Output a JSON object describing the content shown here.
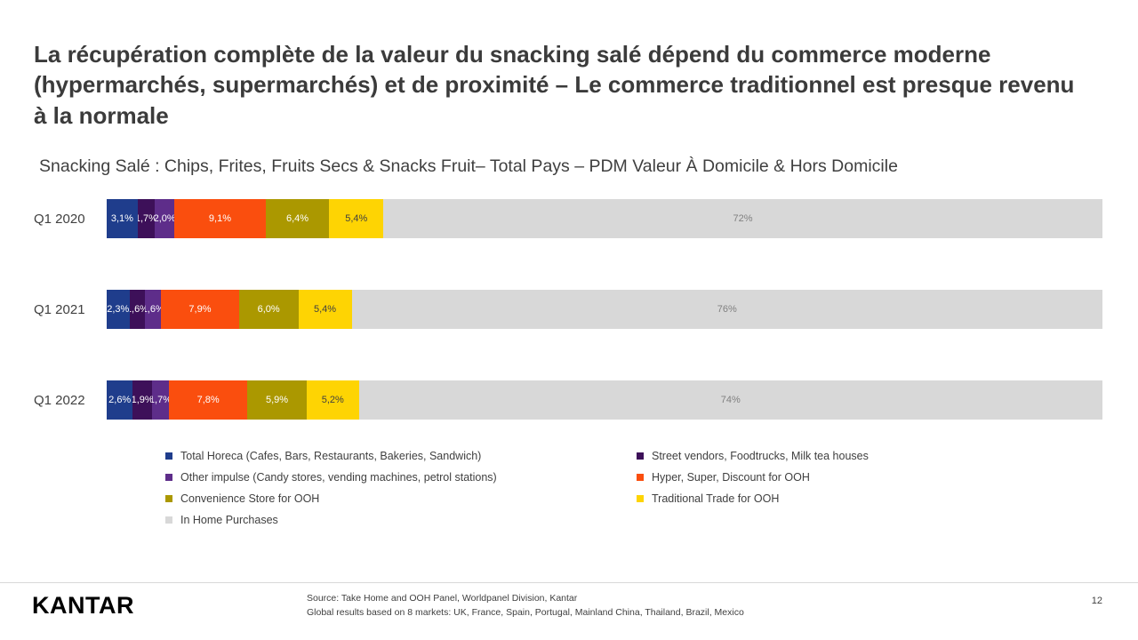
{
  "slide": {
    "title": "La récupération complète de la valeur du snacking salé dépend du commerce moderne (hypermarchés, supermarchés) et de proximité – Le commerce traditionnel est presque revenu à la normale",
    "subtitle": "Snacking Salé : Chips, Frites, Fruits Secs & Snacks Fruit– Total Pays – PDM Valeur À Domicile & Hors Domicile",
    "logo_text": "KANTAR",
    "source_line1": "Source: Take Home and OOH Panel, Worldpanel Division, Kantar",
    "source_line2": "Global results based on 8 markets: UK, France, Spain, Portugal, Mainland China, Thailand, Brazil, Mexico",
    "page_number": "12"
  },
  "chart_data": {
    "type": "bar",
    "variant": "horizontal-100-percent-stacked",
    "title": "Snacking Salé : Chips, Frites, Fruits Secs & Snacks Fruit– Total Pays – PDM Valeur À Domicile & Hors Domicile",
    "categories": [
      "Q1 2020",
      "Q1 2021",
      "Q1 2022"
    ],
    "series": [
      {
        "name": "Total Horeca (Cafes, Bars, Restaurants, Bakeries, Sandwich)",
        "color": "#1f3d8c",
        "label_color": "#ffffff",
        "values": [
          3.1,
          2.3,
          2.6
        ],
        "labels": [
          "3,1%",
          "2,3%",
          "2,6%"
        ]
      },
      {
        "name": "Street vendors, Foodtrucks, Milk tea houses",
        "color": "#3d1059",
        "label_color": "#ffffff",
        "values": [
          1.7,
          1.6,
          1.9
        ],
        "labels": [
          "1,7%",
          "1,6%",
          "1,9%"
        ]
      },
      {
        "name": "Other impulse (Candy stores, vending machines, petrol stations)",
        "color": "#5e2d8a",
        "label_color": "#ffffff",
        "values": [
          2.0,
          1.6,
          1.7
        ],
        "labels": [
          "2,0%",
          "1,6%",
          "1,7%"
        ]
      },
      {
        "name": "Hyper, Super, Discount for OOH",
        "color": "#fa4e0e",
        "label_color": "#ffffff",
        "values": [
          9.1,
          7.9,
          7.8
        ],
        "labels": [
          "9,1%",
          "7,9%",
          "7,8%"
        ]
      },
      {
        "name": "Convenience Store for OOH",
        "color": "#ab9800",
        "label_color": "#ffffff",
        "values": [
          6.4,
          6.0,
          5.9
        ],
        "labels": [
          "6,4%",
          "6,0%",
          "5,9%"
        ]
      },
      {
        "name": "Traditional Trade for OOH",
        "color": "#fed403",
        "label_color": "#404040",
        "values": [
          5.4,
          5.4,
          5.2
        ],
        "labels": [
          "5,4%",
          "5,4%",
          "5,2%"
        ]
      },
      {
        "name": "In Home Purchases",
        "color": "#d8d8d8",
        "label_color": "#808080",
        "values": [
          72,
          76,
          74
        ],
        "labels": [
          "72%",
          "76%",
          "74%"
        ]
      }
    ],
    "legend": {
      "columns": [
        [
          {
            "label": "Total Horeca (Cafes, Bars, Restaurants, Bakeries, Sandwich)",
            "color": "#1f3d8c"
          },
          {
            "label": "Other impulse (Candy stores, vending machines, petrol stations)",
            "color": "#5e2d8a"
          },
          {
            "label": "Convenience Store for OOH",
            "color": "#ab9800"
          },
          {
            "label": "In Home Purchases",
            "color": "#d8d8d8"
          }
        ],
        [
          {
            "label": "Street vendors, Foodtrucks, Milk tea houses",
            "color": "#3d1059"
          },
          {
            "label": "Hyper, Super, Discount for OOH",
            "color": "#fa4e0e"
          },
          {
            "label": "Traditional Trade for OOH",
            "color": "#fed403"
          }
        ]
      ],
      "position": "bottom"
    },
    "axis": {
      "x_range": [
        0,
        100
      ],
      "grid": false
    }
  }
}
